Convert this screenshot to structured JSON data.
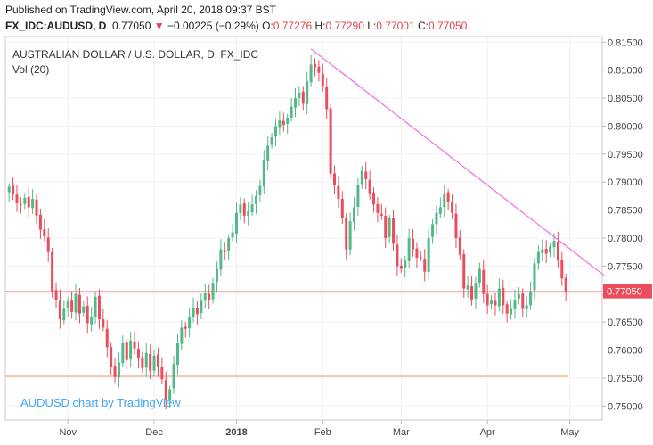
{
  "header": {
    "published": "Published on TradingView.com, April 20, 2018 09:37 BST",
    "symbol": "FX_IDC:AUDUSD, D",
    "last": "0.77050",
    "change_arrow": "▼",
    "change": "−0.00225 (−0.29%)",
    "o_label": "O:",
    "o_value": "0.77276",
    "h_label": "H:",
    "h_value": "0.77290",
    "l_label": "L:",
    "l_value": "0.77001",
    "c_label": "C:",
    "c_value": "0.77050"
  },
  "chart_data": {
    "type": "candlestick",
    "title": "AUSTRALIAN DOLLAR / U.S. DOLLAR, D, FX_IDC",
    "volume_label": "Vol (20)",
    "watermark": "AUDUSD chart by TradingView",
    "last_price_label": "0.77050",
    "ylim": [
      0.7475,
      0.816
    ],
    "y_ticks": [
      "0.81500",
      "0.81000",
      "0.80500",
      "0.80000",
      "0.79500",
      "0.79000",
      "0.78500",
      "0.78000",
      "0.77500",
      "0.77000",
      "0.76500",
      "0.76000",
      "0.75500",
      "0.75000"
    ],
    "x_ticks": [
      {
        "label": "Nov",
        "bar": 15
      },
      {
        "label": "Dec",
        "bar": 37
      },
      {
        "label": "2018",
        "bar": 58
      },
      {
        "label": "Feb",
        "bar": 80
      },
      {
        "label": "Mar",
        "bar": 100
      },
      {
        "label": "Apr",
        "bar": 122
      },
      {
        "label": "May",
        "bar": 143
      }
    ],
    "bar_count": 152,
    "up_color": "#53b987",
    "down_color": "#eb4d5c",
    "trendline": {
      "from_bar": 77,
      "from_price": 0.8138,
      "to_bar": 152,
      "to_price": 0.7732,
      "color": "#f06ee0"
    },
    "support_line": {
      "price": 0.7553,
      "color": "#f4b6a0"
    },
    "last_price_line_color": "#f2a5ad",
    "closes": [
      0.7892,
      0.7878,
      0.7862,
      0.786,
      0.7872,
      0.7855,
      0.787,
      0.784,
      0.7815,
      0.7803,
      0.7775,
      0.7705,
      0.769,
      0.7655,
      0.7675,
      0.7688,
      0.7668,
      0.77,
      0.7665,
      0.7678,
      0.7648,
      0.766,
      0.7695,
      0.7655,
      0.764,
      0.7605,
      0.757,
      0.7552,
      0.7578,
      0.7612,
      0.7582,
      0.7617,
      0.7603,
      0.7585,
      0.7568,
      0.7595,
      0.7563,
      0.759,
      0.757,
      0.7548,
      0.751,
      0.753,
      0.7575,
      0.7612,
      0.764,
      0.7638,
      0.766,
      0.7676,
      0.7664,
      0.769,
      0.7702,
      0.769,
      0.772,
      0.7745,
      0.778,
      0.7775,
      0.78,
      0.781,
      0.7845,
      0.786,
      0.784,
      0.7848,
      0.786,
      0.7875,
      0.7893,
      0.794,
      0.7965,
      0.798,
      0.8,
      0.801,
      0.8002,
      0.8015,
      0.8035,
      0.805,
      0.806,
      0.804,
      0.808,
      0.811,
      0.8105,
      0.8095,
      0.8072,
      0.803,
      0.7915,
      0.7895,
      0.787,
      0.7835,
      0.778,
      0.783,
      0.7855,
      0.7895,
      0.792,
      0.7905,
      0.788,
      0.786,
      0.7845,
      0.784,
      0.78,
      0.7835,
      0.779,
      0.775,
      0.7745,
      0.776,
      0.78,
      0.778,
      0.7765,
      0.7765,
      0.774,
      0.78,
      0.7825,
      0.7845,
      0.7855,
      0.788,
      0.7865,
      0.7845,
      0.78,
      0.777,
      0.771,
      0.7715,
      0.769,
      0.772,
      0.7745,
      0.77,
      0.768,
      0.769,
      0.768,
      0.771,
      0.768,
      0.7665,
      0.7675,
      0.769,
      0.77,
      0.7675,
      0.768,
      0.7705,
      0.7755,
      0.7775,
      0.778,
      0.7772,
      0.7785,
      0.7795,
      0.776,
      0.7728,
      0.7705
    ]
  }
}
